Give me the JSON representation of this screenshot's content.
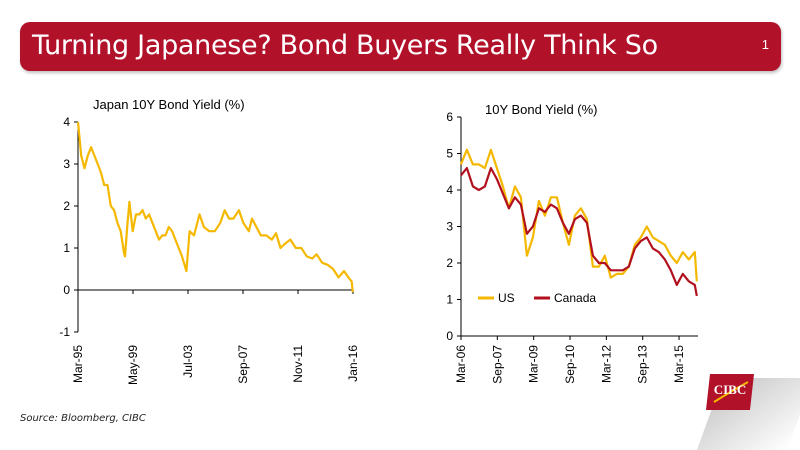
{
  "header": {
    "title": "Turning Japanese? Bond Buyers Really Think So",
    "page_number": "1"
  },
  "footer": {
    "source": "Source: Bloomberg, CIBC"
  },
  "logo": {
    "text": "CIBC"
  },
  "colors": {
    "banner": "#b2112a",
    "japan_line": "#f5b800",
    "us_line": "#f5b800",
    "canada_line": "#b2101e"
  },
  "chart_data": [
    {
      "type": "line",
      "title": "Japan 10Y Bond Yield (%)",
      "xlabel": "",
      "ylabel": "",
      "ylim": [
        -1,
        4
      ],
      "yticks": [
        -1,
        0,
        1,
        2,
        3,
        4
      ],
      "x_tick_labels": [
        "Mar-95",
        "May-99",
        "Jul-03",
        "Sep-07",
        "Nov-11",
        "Jan-16"
      ],
      "grid": false,
      "series": [
        {
          "x": [
            "1995-03",
            "1995-06",
            "1995-09",
            "1995-12",
            "1996-03",
            "1996-06",
            "1996-09",
            "1996-12",
            "1997-03",
            "1997-06",
            "1997-09",
            "1997-12",
            "1998-03",
            "1998-06",
            "1998-09",
            "1998-10",
            "1998-12",
            "1999-02",
            "1999-05",
            "1999-08",
            "1999-11",
            "2000-02",
            "2000-05",
            "2000-08",
            "2000-11",
            "2001-02",
            "2001-05",
            "2001-08",
            "2001-11",
            "2002-02",
            "2002-05",
            "2002-08",
            "2002-11",
            "2003-02",
            "2003-06",
            "2003-09",
            "2004-01",
            "2004-06",
            "2004-10",
            "2005-03",
            "2005-08",
            "2006-01",
            "2006-05",
            "2006-09",
            "2007-01",
            "2007-06",
            "2007-10",
            "2008-03",
            "2008-06",
            "2008-10",
            "2009-02",
            "2009-07",
            "2009-12",
            "2010-04",
            "2010-08",
            "2010-12",
            "2011-05",
            "2011-10",
            "2012-03",
            "2012-08",
            "2013-01",
            "2013-05",
            "2013-10",
            "2014-03",
            "2014-08",
            "2015-01",
            "2015-06",
            "2015-10",
            "2016-01",
            "2016-02"
          ],
          "values": [
            4.0,
            3.2,
            2.9,
            3.2,
            3.4,
            3.2,
            3.0,
            2.8,
            2.5,
            2.5,
            2.0,
            1.9,
            1.6,
            1.4,
            0.9,
            0.8,
            1.5,
            2.1,
            1.4,
            1.8,
            1.8,
            1.9,
            1.7,
            1.8,
            1.6,
            1.4,
            1.2,
            1.3,
            1.3,
            1.5,
            1.4,
            1.2,
            1.0,
            0.8,
            0.45,
            1.4,
            1.3,
            1.8,
            1.5,
            1.4,
            1.4,
            1.6,
            1.9,
            1.7,
            1.7,
            1.9,
            1.6,
            1.4,
            1.7,
            1.5,
            1.3,
            1.3,
            1.2,
            1.35,
            1.0,
            1.1,
            1.2,
            1.0,
            1.0,
            0.8,
            0.75,
            0.85,
            0.65,
            0.6,
            0.5,
            0.3,
            0.45,
            0.3,
            0.2,
            -0.05
          ]
        }
      ]
    },
    {
      "type": "line",
      "title": "10Y Bond Yield (%)",
      "xlabel": "",
      "ylabel": "",
      "ylim": [
        0,
        6
      ],
      "yticks": [
        0,
        1,
        2,
        3,
        4,
        5,
        6
      ],
      "x_tick_labels": [
        "Mar-06",
        "Sep-07",
        "Mar-09",
        "Sep-10",
        "Mar-12",
        "Sep-13",
        "Mar-15"
      ],
      "grid": false,
      "legend": "bottom-left",
      "series": [
        {
          "name": "US",
          "x": [
            "2006-03",
            "2006-06",
            "2006-09",
            "2006-12",
            "2007-03",
            "2007-06",
            "2007-09",
            "2007-12",
            "2008-03",
            "2008-06",
            "2008-09",
            "2008-12",
            "2009-03",
            "2009-06",
            "2009-09",
            "2009-12",
            "2010-03",
            "2010-06",
            "2010-09",
            "2010-12",
            "2011-03",
            "2011-06",
            "2011-09",
            "2011-12",
            "2012-03",
            "2012-06",
            "2012-09",
            "2012-12",
            "2013-03",
            "2013-06",
            "2013-09",
            "2013-12",
            "2014-03",
            "2014-06",
            "2014-09",
            "2014-12",
            "2015-03",
            "2015-06",
            "2015-09",
            "2015-12",
            "2016-01"
          ],
          "values": [
            4.7,
            5.1,
            4.7,
            4.7,
            4.6,
            5.1,
            4.6,
            4.1,
            3.5,
            4.1,
            3.8,
            2.2,
            2.7,
            3.7,
            3.3,
            3.8,
            3.8,
            3.1,
            2.5,
            3.3,
            3.5,
            3.2,
            1.9,
            1.9,
            2.2,
            1.6,
            1.7,
            1.7,
            1.9,
            2.5,
            2.7,
            3.0,
            2.7,
            2.6,
            2.5,
            2.2,
            2.0,
            2.3,
            2.1,
            2.3,
            1.5
          ]
        },
        {
          "name": "Canada",
          "x": [
            "2006-03",
            "2006-06",
            "2006-09",
            "2006-12",
            "2007-03",
            "2007-06",
            "2007-09",
            "2007-12",
            "2008-03",
            "2008-06",
            "2008-09",
            "2008-12",
            "2009-03",
            "2009-06",
            "2009-09",
            "2009-12",
            "2010-03",
            "2010-06",
            "2010-09",
            "2010-12",
            "2011-03",
            "2011-06",
            "2011-09",
            "2011-12",
            "2012-03",
            "2012-06",
            "2012-09",
            "2012-12",
            "2013-03",
            "2013-06",
            "2013-09",
            "2013-12",
            "2014-03",
            "2014-06",
            "2014-09",
            "2014-12",
            "2015-03",
            "2015-06",
            "2015-09",
            "2015-12",
            "2016-01"
          ],
          "values": [
            4.4,
            4.6,
            4.1,
            4.0,
            4.1,
            4.6,
            4.3,
            3.9,
            3.5,
            3.8,
            3.6,
            2.8,
            3.0,
            3.5,
            3.4,
            3.6,
            3.5,
            3.1,
            2.8,
            3.2,
            3.3,
            3.1,
            2.2,
            2.0,
            2.0,
            1.8,
            1.8,
            1.8,
            1.9,
            2.4,
            2.6,
            2.7,
            2.4,
            2.3,
            2.1,
            1.8,
            1.4,
            1.7,
            1.5,
            1.4,
            1.1
          ]
        }
      ]
    }
  ]
}
